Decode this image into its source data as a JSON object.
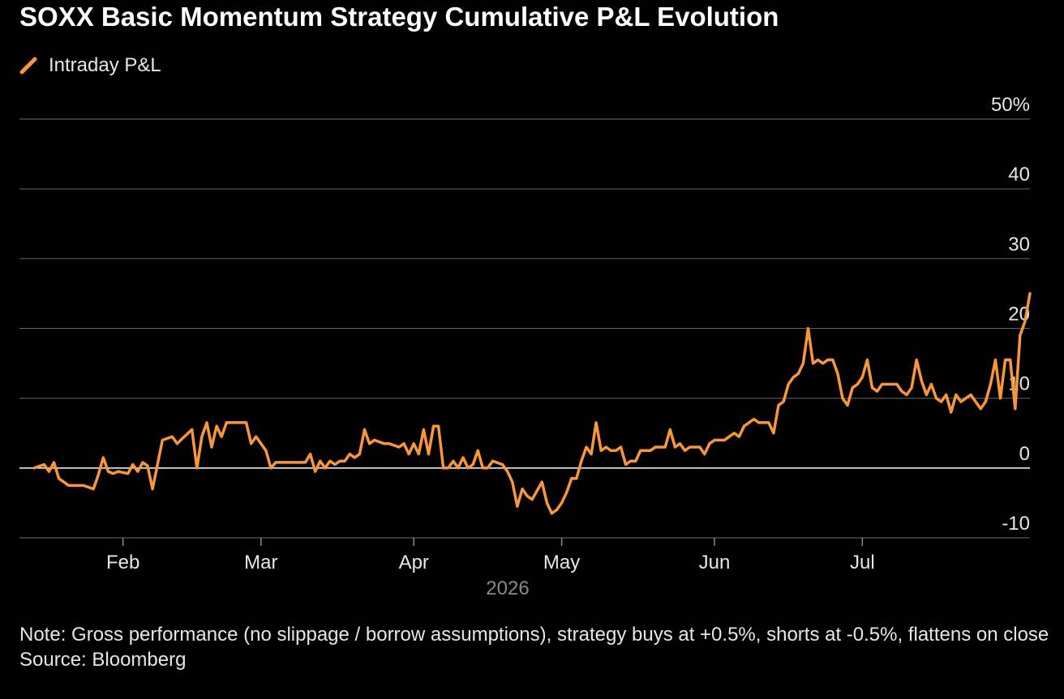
{
  "title": "SOXX Basic Momentum Strategy Cumulative P&L Evolution",
  "legend": {
    "label": "Intraday P&L",
    "color": "#f7963b"
  },
  "footer": {
    "note": "Note: Gross performance (no slippage / borrow assumptions), strategy buys at +0.5%, shorts at -0.5%, flattens on close",
    "source": "Source: Bloomberg"
  },
  "chart_data": {
    "type": "line",
    "title": "SOXX Basic Momentum Strategy Cumulative P&L Evolution",
    "xlabel": "2026",
    "ylabel": "",
    "x_tick_labels": [
      "Feb",
      "Mar",
      "Apr",
      "May",
      "Jun",
      "Jul"
    ],
    "x_ticks": [
      "2026-02-01",
      "2026-03-01",
      "2026-04-01",
      "2026-05-01",
      "2026-06-01",
      "2026-07-01"
    ],
    "xlim": [
      "2026-01-11",
      "2026-08-04"
    ],
    "y_tick_labels": [
      "50%",
      "40",
      "30",
      "20",
      "10",
      "0",
      "-10"
    ],
    "y_ticks": [
      50,
      40,
      30,
      20,
      10,
      0,
      -10
    ],
    "ylim": [
      -10,
      50
    ],
    "grid": true,
    "legend_position": "top-left",
    "series": [
      {
        "name": "Intraday P&L",
        "color": "#f7963b",
        "points": [
          [
            "2026-01-14",
            0
          ],
          [
            "2026-01-16",
            0.5
          ],
          [
            "2026-01-17",
            -0.5
          ],
          [
            "2026-01-18",
            0.8
          ],
          [
            "2026-01-19",
            -1.5
          ],
          [
            "2026-01-21",
            -2.5
          ],
          [
            "2026-01-24",
            -2.5
          ],
          [
            "2026-01-26",
            -3
          ],
          [
            "2026-01-27",
            -1
          ],
          [
            "2026-01-28",
            1.5
          ],
          [
            "2026-01-29",
            -0.5
          ],
          [
            "2026-01-30",
            -0.8
          ],
          [
            "2026-01-31",
            -0.5
          ],
          [
            "2026-02-02",
            -0.8
          ],
          [
            "2026-02-03",
            0.5
          ],
          [
            "2026-02-04",
            -0.5
          ],
          [
            "2026-02-05",
            0.8
          ],
          [
            "2026-02-06",
            0.3
          ],
          [
            "2026-02-07",
            -3
          ],
          [
            "2026-02-08",
            0.5
          ],
          [
            "2026-02-09",
            4
          ],
          [
            "2026-02-11",
            4.5
          ],
          [
            "2026-02-12",
            3.5
          ],
          [
            "2026-02-13",
            4.2
          ],
          [
            "2026-02-15",
            5.5
          ],
          [
            "2026-02-16",
            0
          ],
          [
            "2026-02-17",
            4.5
          ],
          [
            "2026-02-18",
            6.5
          ],
          [
            "2026-02-19",
            3
          ],
          [
            "2026-02-20",
            6
          ],
          [
            "2026-02-21",
            4.5
          ],
          [
            "2026-02-22",
            6.5
          ],
          [
            "2026-02-24",
            6.5
          ],
          [
            "2026-02-26",
            6.5
          ],
          [
            "2026-02-27",
            3.5
          ],
          [
            "2026-02-28",
            4.5
          ],
          [
            "2026-03-02",
            2.5
          ],
          [
            "2026-03-03",
            0
          ],
          [
            "2026-03-04",
            0.8
          ],
          [
            "2026-03-06",
            0.8
          ],
          [
            "2026-03-08",
            0.8
          ],
          [
            "2026-03-10",
            0.8
          ],
          [
            "2026-03-11",
            2
          ],
          [
            "2026-03-12",
            -0.5
          ],
          [
            "2026-03-13",
            1
          ],
          [
            "2026-03-14",
            0
          ],
          [
            "2026-03-15",
            1
          ],
          [
            "2026-03-16",
            0.5
          ],
          [
            "2026-03-17",
            1
          ],
          [
            "2026-03-18",
            1
          ],
          [
            "2026-03-19",
            2
          ],
          [
            "2026-03-20",
            1.5
          ],
          [
            "2026-03-21",
            2
          ],
          [
            "2026-03-22",
            5.5
          ],
          [
            "2026-03-23",
            3.5
          ],
          [
            "2026-03-24",
            4
          ],
          [
            "2026-03-26",
            3.5
          ],
          [
            "2026-03-27",
            3.5
          ],
          [
            "2026-03-29",
            3
          ],
          [
            "2026-03-30",
            3.5
          ],
          [
            "2026-03-31",
            2
          ],
          [
            "2026-04-01",
            3.5
          ],
          [
            "2026-04-02",
            2
          ],
          [
            "2026-04-03",
            5.5
          ],
          [
            "2026-04-04",
            2
          ],
          [
            "2026-04-05",
            6
          ],
          [
            "2026-04-06",
            6
          ],
          [
            "2026-04-07",
            0
          ],
          [
            "2026-04-08",
            0
          ],
          [
            "2026-04-09",
            1
          ],
          [
            "2026-04-10",
            0
          ],
          [
            "2026-04-11",
            1.5
          ],
          [
            "2026-04-12",
            0
          ],
          [
            "2026-04-13",
            0.5
          ],
          [
            "2026-04-14",
            2.5
          ],
          [
            "2026-04-15",
            0
          ],
          [
            "2026-04-16",
            0
          ],
          [
            "2026-04-17",
            1
          ],
          [
            "2026-04-19",
            0.5
          ],
          [
            "2026-04-20",
            -0.5
          ],
          [
            "2026-04-21",
            -2
          ],
          [
            "2026-04-22",
            -5.5
          ],
          [
            "2026-04-23",
            -3
          ],
          [
            "2026-04-24",
            -4
          ],
          [
            "2026-04-25",
            -4.5
          ],
          [
            "2026-04-27",
            -2
          ],
          [
            "2026-04-28",
            -5
          ],
          [
            "2026-04-29",
            -6.5
          ],
          [
            "2026-04-30",
            -6
          ],
          [
            "2026-05-01",
            -5
          ],
          [
            "2026-05-02",
            -3.5
          ],
          [
            "2026-05-03",
            -1.5
          ],
          [
            "2026-05-04",
            -1.5
          ],
          [
            "2026-05-05",
            1
          ],
          [
            "2026-05-06",
            3
          ],
          [
            "2026-05-07",
            2
          ],
          [
            "2026-05-08",
            6.5
          ],
          [
            "2026-05-09",
            2.5
          ],
          [
            "2026-05-10",
            3
          ],
          [
            "2026-05-11",
            2.5
          ],
          [
            "2026-05-12",
            2.5
          ],
          [
            "2026-05-13",
            3
          ],
          [
            "2026-05-14",
            0.5
          ],
          [
            "2026-05-15",
            1
          ],
          [
            "2026-05-16",
            1
          ],
          [
            "2026-05-17",
            2.5
          ],
          [
            "2026-05-18",
            2.5
          ],
          [
            "2026-05-19",
            2.5
          ],
          [
            "2026-05-20",
            3
          ],
          [
            "2026-05-21",
            3
          ],
          [
            "2026-05-22",
            3
          ],
          [
            "2026-05-23",
            5.5
          ],
          [
            "2026-05-24",
            3
          ],
          [
            "2026-05-25",
            3.5
          ],
          [
            "2026-05-26",
            2.5
          ],
          [
            "2026-05-27",
            3
          ],
          [
            "2026-05-29",
            3
          ],
          [
            "2026-05-30",
            2
          ],
          [
            "2026-05-31",
            3.5
          ],
          [
            "2026-06-01",
            4
          ],
          [
            "2026-06-02",
            4
          ],
          [
            "2026-06-03",
            4
          ],
          [
            "2026-06-04",
            4.5
          ],
          [
            "2026-06-05",
            5
          ],
          [
            "2026-06-06",
            4.5
          ],
          [
            "2026-06-07",
            6
          ],
          [
            "2026-06-08",
            6.5
          ],
          [
            "2026-06-09",
            7
          ],
          [
            "2026-06-10",
            6.5
          ],
          [
            "2026-06-11",
            6.5
          ],
          [
            "2026-06-12",
            6.5
          ],
          [
            "2026-06-13",
            5
          ],
          [
            "2026-06-14",
            9
          ],
          [
            "2026-06-15",
            9.5
          ],
          [
            "2026-06-16",
            12
          ],
          [
            "2026-06-17",
            13
          ],
          [
            "2026-06-18",
            13.5
          ],
          [
            "2026-06-19",
            15
          ],
          [
            "2026-06-20",
            20
          ],
          [
            "2026-06-21",
            15
          ],
          [
            "2026-06-22",
            15.5
          ],
          [
            "2026-06-23",
            15
          ],
          [
            "2026-06-24",
            15.5
          ],
          [
            "2026-06-25",
            15.5
          ],
          [
            "2026-06-26",
            13.5
          ],
          [
            "2026-06-27",
            10
          ],
          [
            "2026-06-28",
            9
          ],
          [
            "2026-06-29",
            11.5
          ],
          [
            "2026-06-30",
            12
          ],
          [
            "2026-07-01",
            13
          ],
          [
            "2026-07-02",
            15.5
          ],
          [
            "2026-07-03",
            11.5
          ],
          [
            "2026-07-04",
            11
          ],
          [
            "2026-07-05",
            12
          ],
          [
            "2026-07-06",
            12
          ],
          [
            "2026-07-07",
            12
          ],
          [
            "2026-07-08",
            12
          ],
          [
            "2026-07-09",
            11
          ],
          [
            "2026-07-10",
            10.5
          ],
          [
            "2026-07-11",
            11.5
          ],
          [
            "2026-07-12",
            15.5
          ],
          [
            "2026-07-13",
            12.5
          ],
          [
            "2026-07-14",
            10.5
          ],
          [
            "2026-07-15",
            12
          ],
          [
            "2026-07-16",
            10
          ],
          [
            "2026-07-17",
            9.5
          ],
          [
            "2026-07-18",
            10.5
          ],
          [
            "2026-07-19",
            8
          ],
          [
            "2026-07-20",
            10.5
          ],
          [
            "2026-07-21",
            9.5
          ],
          [
            "2026-07-22",
            10
          ],
          [
            "2026-07-23",
            10.5
          ],
          [
            "2026-07-24",
            9.5
          ],
          [
            "2026-07-25",
            8.5
          ],
          [
            "2026-07-26",
            9.5
          ],
          [
            "2026-07-27",
            12
          ],
          [
            "2026-07-28",
            15.5
          ],
          [
            "2026-07-29",
            10
          ],
          [
            "2026-07-30",
            15.5
          ],
          [
            "2026-07-31",
            15.5
          ],
          [
            "2026-08-01",
            8.5
          ],
          [
            "2026-08-02",
            19
          ],
          [
            "2026-08-03",
            21
          ],
          [
            "2026-08-04",
            25
          ]
        ]
      }
    ]
  }
}
